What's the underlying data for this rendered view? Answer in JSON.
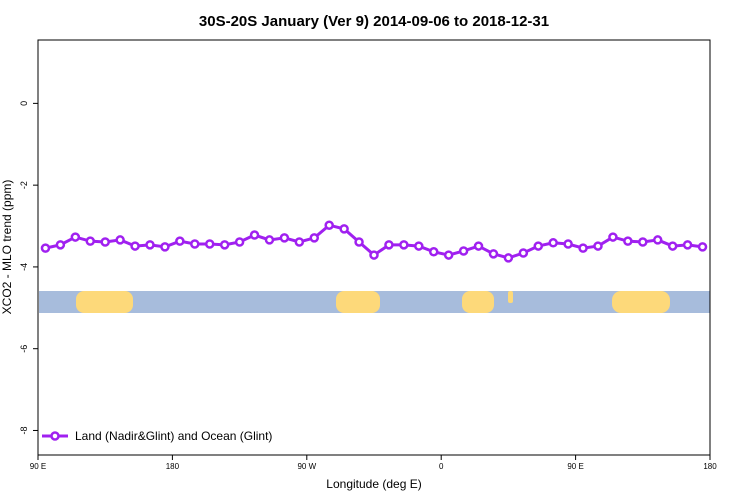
{
  "chart_data": {
    "type": "line",
    "title": "30S-20S January (Ver 9)   2014-09-06 to 2018-12-31",
    "x_label": "Longitude (deg E)",
    "y_label": "XCO2 - MLO trend (ppm)",
    "x": [
      95,
      105,
      115,
      125,
      135,
      145,
      155,
      165,
      175,
      185,
      195,
      205,
      215,
      225,
      235,
      245,
      255,
      265,
      275,
      285,
      295,
      305,
      315,
      325,
      335,
      345,
      355,
      365,
      375,
      385,
      395,
      405,
      415,
      425,
      435,
      445,
      455,
      465,
      475,
      485,
      495,
      505,
      515,
      525,
      535
    ],
    "series": [
      {
        "name": "Land (Nadir&Glint) and Ocean (Glint)",
        "color": "#a020f0",
        "values": [
          -3.54,
          -3.46,
          -3.27,
          -3.37,
          -3.39,
          -3.34,
          -3.49,
          -3.46,
          -3.51,
          -3.37,
          -3.44,
          -3.44,
          -3.46,
          -3.39,
          -3.22,
          -3.34,
          -3.29,
          -3.39,
          -3.29,
          -2.98,
          -3.07,
          -3.39,
          -3.71,
          -3.46,
          -3.46,
          -3.49,
          -3.63,
          -3.71,
          -3.61,
          -3.49,
          -3.68,
          -3.78,
          -3.66,
          -3.49,
          -3.41,
          -3.44,
          -3.54,
          -3.49,
          -3.27,
          -3.37,
          -3.39,
          -3.34,
          -3.49,
          -3.46,
          -3.51
        ]
      }
    ],
    "xlim": [
      90,
      540
    ],
    "xticks": [
      {
        "value": 90,
        "label": "90 E"
      },
      180,
      {
        "value": 270,
        "label": "90 W"
      },
      {
        "value": 360,
        "label": "0"
      },
      {
        "value": 450,
        "label": "90 E"
      },
      {
        "value": 540,
        "label": "180"
      }
    ],
    "ylim": [
      -8.6,
      1.55
    ],
    "yticks": [
      0,
      -2,
      -4,
      -6,
      -8
    ],
    "legend": "bottom-left"
  }
}
